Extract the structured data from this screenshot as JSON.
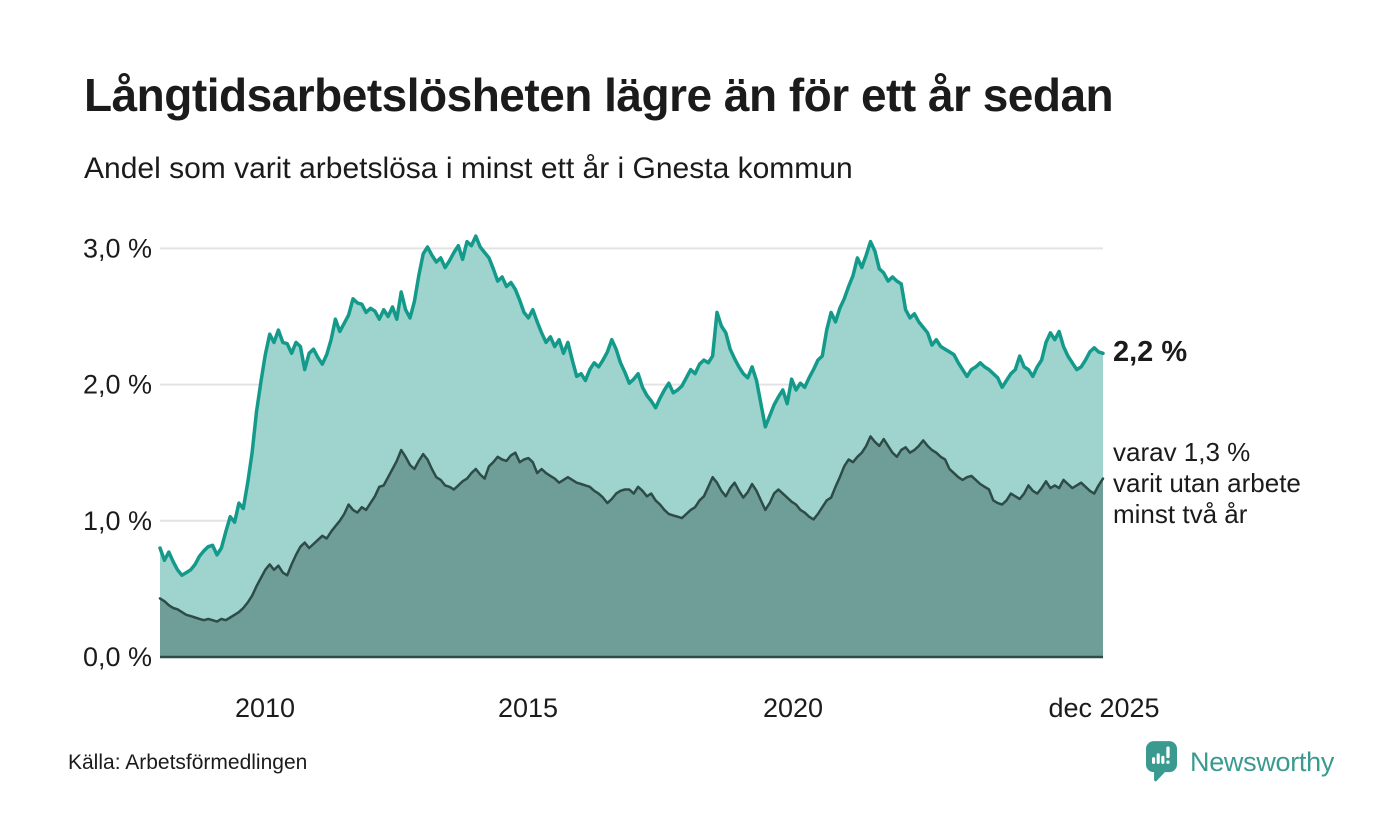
{
  "header": {
    "title": "Långtidsarbetslösheten lägre än för ett år sedan",
    "subtitle": "Andel som varit arbetslösa i minst ett år i Gnesta kommun"
  },
  "chart_data": {
    "type": "area",
    "title": "Långtidsarbetslösheten lägre än för ett år sedan",
    "subtitle": "Andel som varit arbetslösa i minst ett år i Gnesta kommun",
    "x_start": "2008-01",
    "x_end": "2025-12",
    "frequency": "monthly",
    "y_unit": "%",
    "ylim": [
      0,
      3.2
    ],
    "grid": "horizontal",
    "y_ticks": [
      "3,0 %",
      "2,0 %",
      "1,0 %",
      "0,0 %"
    ],
    "x_ticks": [
      "2010",
      "2015",
      "2020",
      "dec 2025"
    ],
    "colors": {
      "one_year_line": "#149a8b",
      "one_year_fill": "#9ed4cd",
      "two_year_line": "#2e4c47",
      "two_year_fill": "#6f9e99"
    },
    "series": [
      {
        "name": "minst ett år",
        "latest_label": "2,2 %",
        "latest_value": 2.2,
        "values": [
          0.8,
          0.71,
          0.77,
          0.7,
          0.64,
          0.6,
          0.62,
          0.64,
          0.68,
          0.74,
          0.78,
          0.81,
          0.82,
          0.75,
          0.8,
          0.92,
          1.03,
          0.99,
          1.13,
          1.09,
          1.28,
          1.5,
          1.8,
          2.02,
          2.22,
          2.37,
          2.31,
          2.4,
          2.31,
          2.3,
          2.23,
          2.31,
          2.28,
          2.11,
          2.23,
          2.26,
          2.2,
          2.15,
          2.22,
          2.33,
          2.48,
          2.39,
          2.45,
          2.51,
          2.63,
          2.6,
          2.59,
          2.53,
          2.56,
          2.54,
          2.48,
          2.55,
          2.5,
          2.57,
          2.48,
          2.68,
          2.55,
          2.49,
          2.61,
          2.8,
          2.96,
          3.01,
          2.95,
          2.9,
          2.93,
          2.86,
          2.91,
          2.97,
          3.02,
          2.92,
          3.05,
          3.02,
          3.09,
          3.01,
          2.97,
          2.93,
          2.85,
          2.76,
          2.79,
          2.72,
          2.75,
          2.7,
          2.62,
          2.53,
          2.49,
          2.55,
          2.46,
          2.38,
          2.31,
          2.35,
          2.28,
          2.33,
          2.23,
          2.31,
          2.18,
          2.06,
          2.08,
          2.03,
          2.11,
          2.16,
          2.13,
          2.18,
          2.24,
          2.33,
          2.26,
          2.16,
          2.09,
          2.01,
          2.04,
          2.08,
          1.98,
          1.92,
          1.88,
          1.83,
          1.9,
          1.96,
          2.01,
          1.94,
          1.96,
          1.99,
          2.05,
          2.11,
          2.08,
          2.15,
          2.18,
          2.16,
          2.21,
          2.53,
          2.43,
          2.38,
          2.26,
          2.19,
          2.13,
          2.08,
          2.05,
          2.13,
          2.03,
          1.86,
          1.69,
          1.77,
          1.85,
          1.91,
          1.96,
          1.86,
          2.04,
          1.96,
          2.01,
          1.98,
          2.05,
          2.11,
          2.18,
          2.21,
          2.4,
          2.53,
          2.46,
          2.56,
          2.63,
          2.72,
          2.8,
          2.93,
          2.86,
          2.95,
          3.05,
          2.98,
          2.85,
          2.82,
          2.76,
          2.79,
          2.76,
          2.74,
          2.55,
          2.49,
          2.52,
          2.46,
          2.42,
          2.38,
          2.29,
          2.33,
          2.28,
          2.26,
          2.24,
          2.22,
          2.16,
          2.11,
          2.06,
          2.11,
          2.13,
          2.16,
          2.13,
          2.11,
          2.08,
          2.05,
          1.98,
          2.03,
          2.08,
          2.11,
          2.21,
          2.13,
          2.11,
          2.06,
          2.13,
          2.18,
          2.31,
          2.38,
          2.33,
          2.39,
          2.28,
          2.21,
          2.16,
          2.11,
          2.13,
          2.18,
          2.24,
          2.27,
          2.24,
          2.23
        ]
      },
      {
        "name": "minst två år",
        "latest_label": "varav 1,3 % varit utan arbete minst två år",
        "latest_value": 1.3,
        "values": [
          0.43,
          0.41,
          0.38,
          0.36,
          0.35,
          0.33,
          0.31,
          0.3,
          0.29,
          0.28,
          0.27,
          0.28,
          0.27,
          0.26,
          0.28,
          0.27,
          0.29,
          0.31,
          0.33,
          0.36,
          0.4,
          0.45,
          0.52,
          0.58,
          0.64,
          0.68,
          0.64,
          0.67,
          0.62,
          0.6,
          0.68,
          0.75,
          0.81,
          0.84,
          0.8,
          0.83,
          0.86,
          0.89,
          0.87,
          0.92,
          0.96,
          1.0,
          1.05,
          1.12,
          1.08,
          1.06,
          1.1,
          1.08,
          1.13,
          1.18,
          1.25,
          1.26,
          1.32,
          1.38,
          1.44,
          1.52,
          1.47,
          1.41,
          1.38,
          1.44,
          1.49,
          1.45,
          1.38,
          1.32,
          1.3,
          1.26,
          1.25,
          1.23,
          1.26,
          1.29,
          1.31,
          1.35,
          1.38,
          1.34,
          1.31,
          1.4,
          1.43,
          1.47,
          1.45,
          1.44,
          1.48,
          1.5,
          1.43,
          1.45,
          1.46,
          1.43,
          1.35,
          1.38,
          1.35,
          1.33,
          1.31,
          1.28,
          1.3,
          1.32,
          1.3,
          1.28,
          1.27,
          1.26,
          1.25,
          1.22,
          1.2,
          1.17,
          1.13,
          1.16,
          1.2,
          1.22,
          1.23,
          1.23,
          1.2,
          1.25,
          1.22,
          1.18,
          1.2,
          1.15,
          1.12,
          1.08,
          1.05,
          1.04,
          1.03,
          1.02,
          1.05,
          1.08,
          1.1,
          1.15,
          1.18,
          1.25,
          1.32,
          1.28,
          1.22,
          1.18,
          1.24,
          1.28,
          1.22,
          1.17,
          1.21,
          1.27,
          1.22,
          1.15,
          1.08,
          1.13,
          1.2,
          1.23,
          1.2,
          1.17,
          1.14,
          1.12,
          1.08,
          1.06,
          1.03,
          1.01,
          1.05,
          1.1,
          1.15,
          1.17,
          1.25,
          1.32,
          1.4,
          1.45,
          1.43,
          1.47,
          1.5,
          1.55,
          1.62,
          1.58,
          1.55,
          1.6,
          1.55,
          1.5,
          1.47,
          1.52,
          1.54,
          1.5,
          1.52,
          1.55,
          1.59,
          1.55,
          1.52,
          1.5,
          1.47,
          1.45,
          1.38,
          1.35,
          1.32,
          1.3,
          1.32,
          1.33,
          1.3,
          1.27,
          1.25,
          1.23,
          1.15,
          1.13,
          1.12,
          1.15,
          1.2,
          1.18,
          1.16,
          1.2,
          1.26,
          1.22,
          1.2,
          1.24,
          1.29,
          1.24,
          1.26,
          1.24,
          1.3,
          1.27,
          1.24,
          1.26,
          1.28,
          1.25,
          1.22,
          1.2,
          1.26,
          1.31
        ]
      }
    ]
  },
  "annotations": {
    "latest_total": "2,2 %",
    "two_year_line1": "varav 1,3 %",
    "two_year_line2": "varit utan arbete",
    "two_year_line3": "minst två år"
  },
  "footer": {
    "source": "Källa: Arbetsförmedlingen",
    "brand": "Newsworthy"
  }
}
